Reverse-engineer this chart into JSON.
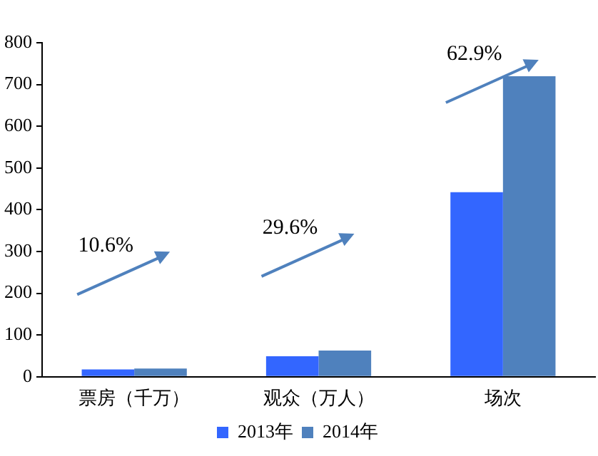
{
  "chart_data": {
    "type": "bar",
    "categories": [
      "票房（千万）",
      "观众（万人）",
      "场次"
    ],
    "series": [
      {
        "name": "2013年",
        "color": "#3366ff",
        "values": [
          17.6,
          49,
          442
        ]
      },
      {
        "name": "2014年",
        "color": "#4f81bd",
        "values": [
          19.5,
          63,
          720
        ]
      }
    ],
    "ylim": [
      0,
      800
    ],
    "yticks": [
      0,
      100,
      200,
      300,
      400,
      500,
      600,
      700,
      800
    ],
    "grid": false,
    "legend": "bottom",
    "annotations": [
      "10.6%",
      "29.6%",
      "62.9%"
    ]
  }
}
